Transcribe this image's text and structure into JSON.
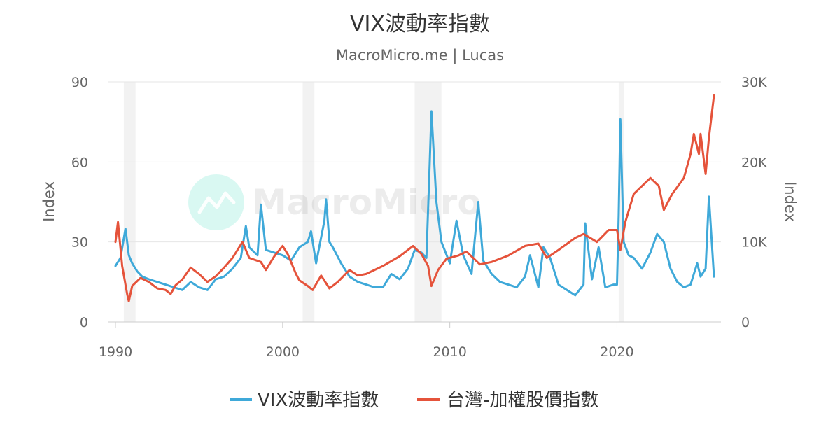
{
  "chart_data": {
    "type": "line",
    "title": "VIX波動率指數",
    "subtitle": "MacroMicro.me | Lucas",
    "watermark": "MacroMicro",
    "y_left": {
      "label": "Index",
      "range": [
        0,
        90
      ],
      "ticks": [
        "0",
        "30",
        "60",
        "90"
      ]
    },
    "y_right": {
      "label": "Index",
      "range": [
        0,
        30000
      ],
      "ticks": [
        "0",
        "10K",
        "20K",
        "30K"
      ]
    },
    "x_axis": {
      "range": [
        1990,
        2025.8
      ],
      "ticks": [
        "1990",
        "2000",
        "2010",
        "2020"
      ]
    },
    "grid": true,
    "legend_position": "bottom",
    "recession_bands": [
      [
        1990.5,
        1991.2
      ],
      [
        2001.2,
        2001.9
      ],
      [
        2007.9,
        2009.5
      ],
      [
        2020.1,
        2020.4
      ]
    ],
    "series": [
      {
        "name": "VIX波動率指數",
        "axis": "left",
        "color": "#3fa9d9",
        "x": [
          1990.0,
          1990.3,
          1990.6,
          1990.8,
          1991.0,
          1991.3,
          1991.6,
          1992.0,
          1992.5,
          1993.0,
          1993.5,
          1994.0,
          1994.5,
          1995.0,
          1995.5,
          1996.0,
          1996.5,
          1997.0,
          1997.5,
          1997.8,
          1998.0,
          1998.5,
          1998.7,
          1999.0,
          1999.5,
          2000.0,
          2000.5,
          2001.0,
          2001.5,
          2001.7,
          2002.0,
          2002.5,
          2002.6,
          2002.8,
          2003.0,
          2003.5,
          2004.0,
          2004.5,
          2005.0,
          2005.5,
          2006.0,
          2006.5,
          2007.0,
          2007.5,
          2007.9,
          2008.3,
          2008.6,
          2008.8,
          2008.9,
          2009.2,
          2009.5,
          2010.0,
          2010.4,
          2010.8,
          2011.3,
          2011.7,
          2012.0,
          2012.5,
          2013.0,
          2013.5,
          2014.0,
          2014.5,
          2014.8,
          2015.3,
          2015.6,
          2016.0,
          2016.5,
          2017.0,
          2017.5,
          2018.0,
          2018.1,
          2018.5,
          2018.9,
          2019.3,
          2019.8,
          2020.0,
          2020.1,
          2020.2,
          2020.4,
          2020.7,
          2021.0,
          2021.5,
          2022.0,
          2022.4,
          2022.8,
          2023.2,
          2023.6,
          2024.0,
          2024.4,
          2024.6,
          2024.8,
          2025.0,
          2025.3,
          2025.5,
          2025.8
        ],
        "values": [
          21,
          24,
          35,
          25,
          22,
          19,
          17,
          16,
          15,
          14,
          13,
          12,
          15,
          13,
          12,
          16,
          17,
          20,
          24,
          36,
          28,
          25,
          44,
          27,
          26,
          25,
          23,
          28,
          30,
          34,
          22,
          38,
          46,
          30,
          28,
          22,
          17,
          15,
          14,
          13,
          13,
          18,
          16,
          20,
          27,
          26,
          24,
          60,
          79,
          45,
          30,
          22,
          38,
          25,
          18,
          45,
          23,
          18,
          15,
          14,
          13,
          17,
          25,
          13,
          28,
          24,
          14,
          12,
          10,
          14,
          37,
          16,
          28,
          13,
          14,
          14,
          40,
          76,
          30,
          25,
          24,
          20,
          26,
          33,
          30,
          20,
          15,
          13,
          14,
          18,
          22,
          17,
          20,
          47,
          17
        ]
      },
      {
        "name": "台灣-加權股價指數",
        "axis": "right",
        "color": "#e5533b",
        "x": [
          1990.0,
          1990.15,
          1990.4,
          1990.7,
          1990.8,
          1991.0,
          1991.5,
          1992.0,
          1992.5,
          1993.0,
          1993.3,
          1993.6,
          1994.0,
          1994.5,
          1995.0,
          1995.5,
          1996.0,
          1996.5,
          1997.0,
          1997.6,
          1998.0,
          1998.7,
          1999.0,
          1999.5,
          2000.0,
          2000.3,
          2000.8,
          2001.0,
          2001.5,
          2001.8,
          2002.3,
          2002.8,
          2003.3,
          2004.0,
          2004.5,
          2005.0,
          2006.0,
          2007.0,
          2007.8,
          2008.3,
          2008.7,
          2008.9,
          2009.3,
          2009.8,
          2010.5,
          2011.0,
          2011.8,
          2012.5,
          2013.5,
          2014.5,
          2015.3,
          2015.8,
          2016.5,
          2017.5,
          2018.0,
          2018.8,
          2019.5,
          2020.0,
          2020.2,
          2020.5,
          2021.0,
          2021.5,
          2022.0,
          2022.5,
          2022.8,
          2023.3,
          2024.0,
          2024.4,
          2024.6,
          2024.9,
          2025.0,
          2025.3,
          2025.5,
          2025.8
        ],
        "values": [
          10000,
          12500,
          7000,
          3500,
          2600,
          4500,
          5500,
          5000,
          4200,
          4000,
          3500,
          4600,
          5300,
          6800,
          6000,
          5000,
          5700,
          6800,
          8000,
          10000,
          8000,
          7500,
          6500,
          8200,
          9500,
          8500,
          6000,
          5200,
          4500,
          4000,
          5800,
          4200,
          5000,
          6500,
          5800,
          6000,
          7000,
          8200,
          9500,
          8500,
          7000,
          4500,
          6500,
          7900,
          8300,
          8800,
          7200,
          7500,
          8300,
          9500,
          9800,
          8000,
          9000,
          10500,
          11000,
          10000,
          11500,
          11500,
          9000,
          12500,
          16000,
          17000,
          18000,
          17000,
          14000,
          16000,
          18000,
          21000,
          23500,
          21000,
          23500,
          18500,
          23000,
          28300
        ]
      }
    ]
  }
}
